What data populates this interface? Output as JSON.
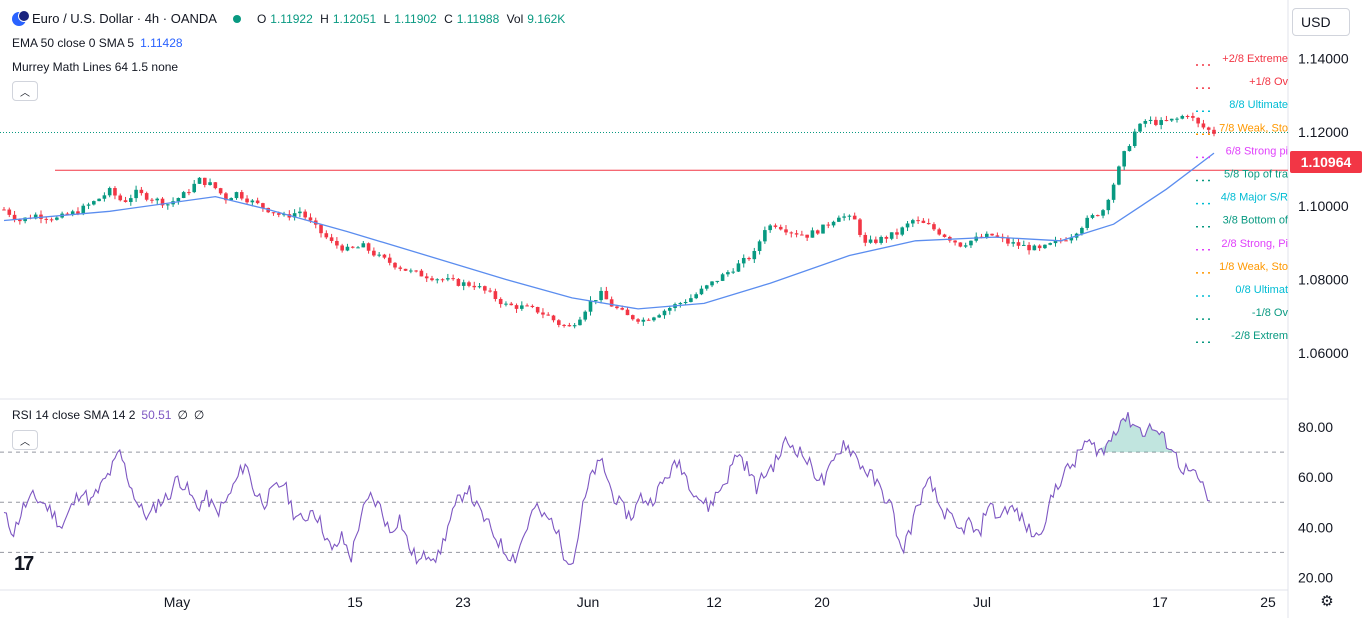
{
  "header": {
    "symbol_title": "Euro / U.S. Dollar · 4h · OANDA",
    "ohlc": {
      "o_label": "O",
      "o": "1.11922",
      "h_label": "H",
      "h": "1.12051",
      "l_label": "L",
      "l": "1.11902",
      "c_label": "C",
      "c": "1.11988",
      "vol_label": "Vol",
      "vol": "9.162K"
    },
    "currency": "USD"
  },
  "indicators": {
    "ema_label": "EMA 50 close 0 SMA 5",
    "ema_value": "1.11428",
    "murrey_label": "Murrey Math Lines 64 1.5 none",
    "rsi_label": "RSI 14 close SMA 14 2",
    "rsi_value": "50.51",
    "rsi_extra1": "∅",
    "rsi_extra2": "∅"
  },
  "price_tag": "1.10964",
  "colors": {
    "up": "#089981",
    "down": "#f23645",
    "ema": "#5b8def",
    "rsi": "#7e57c2",
    "resistance": "#f23645",
    "rsi_fill_top": "#089981"
  },
  "chart_data": [
    {
      "type": "candlestick",
      "title": "",
      "ylim": [
        1.05,
        1.145
      ],
      "y_ticks": [
        "1.14000",
        "1.12000",
        "1.10000",
        "1.08000",
        "1.06000"
      ],
      "x_ticks": [
        "May",
        "15",
        "23",
        "Jun",
        "12",
        "20",
        "Jul",
        "17",
        "25"
      ],
      "horizontal_line": 1.10964,
      "last_close": 1.11988,
      "price_path": [
        [
          0,
          1.099
        ],
        [
          6,
          1.096
        ],
        [
          12,
          1.0975
        ],
        [
          20,
          1.0965
        ],
        [
          28,
          1.0985
        ],
        [
          34,
          1.101
        ],
        [
          40,
          1.104
        ],
        [
          45,
          1.101
        ],
        [
          50,
          1.1035
        ],
        [
          56,
          1.102
        ],
        [
          62,
          1.1005
        ],
        [
          68,
          1.103
        ],
        [
          74,
          1.107
        ],
        [
          79,
          1.1055
        ],
        [
          84,
          1.102
        ],
        [
          88,
          1.1035
        ],
        [
          94,
          1.101
        ],
        [
          100,
          1.099
        ],
        [
          106,
          1.097
        ],
        [
          112,
          1.0985
        ],
        [
          118,
          1.094
        ],
        [
          124,
          1.09
        ],
        [
          130,
          1.088
        ],
        [
          136,
          1.089
        ],
        [
          142,
          1.086
        ],
        [
          148,
          1.084
        ],
        [
          154,
          1.082
        ],
        [
          160,
          1.081
        ],
        [
          166,
          1.08
        ],
        [
          172,
          1.079
        ],
        [
          178,
          1.0785
        ],
        [
          184,
          1.076
        ],
        [
          190,
          1.073
        ],
        [
          196,
          1.0725
        ],
        [
          202,
          1.0715
        ],
        [
          206,
          1.07
        ],
        [
          210,
          1.068
        ],
        [
          214,
          1.067
        ],
        [
          218,
          1.07
        ],
        [
          222,
          1.074
        ],
        [
          226,
          1.076
        ],
        [
          230,
          1.073
        ],
        [
          236,
          1.07
        ],
        [
          242,
          1.069
        ],
        [
          248,
          1.071
        ],
        [
          254,
          1.073
        ],
        [
          260,
          1.075
        ],
        [
          266,
          1.078
        ],
        [
          272,
          1.081
        ],
        [
          278,
          1.084
        ],
        [
          284,
          1.087
        ],
        [
          288,
          1.094
        ],
        [
          292,
          1.095
        ],
        [
          298,
          1.093
        ],
        [
          304,
          1.092
        ],
        [
          310,
          1.094
        ],
        [
          316,
          1.0975
        ],
        [
          322,
          1.096
        ],
        [
          326,
          1.0895
        ],
        [
          332,
          1.091
        ],
        [
          338,
          1.0925
        ],
        [
          344,
          1.096
        ],
        [
          350,
          1.0945
        ],
        [
          356,
          1.092
        ],
        [
          362,
          1.0895
        ],
        [
          368,
          1.091
        ],
        [
          374,
          1.092
        ],
        [
          380,
          1.09
        ],
        [
          386,
          1.089
        ],
        [
          392,
          1.088
        ],
        [
          398,
          1.09
        ],
        [
          404,
          1.092
        ],
        [
          410,
          1.096
        ],
        [
          416,
          1.099
        ],
        [
          420,
          1.106
        ],
        [
          424,
          1.114
        ],
        [
          428,
          1.12
        ],
        [
          432,
          1.123
        ],
        [
          438,
          1.1225
        ],
        [
          444,
          1.1235
        ],
        [
          448,
          1.125
        ],
        [
          452,
          1.122
        ],
        [
          456,
          1.1205
        ],
        [
          458,
          1.1199
        ]
      ],
      "ema_path": [
        [
          0,
          1.096
        ],
        [
          40,
          1.0985
        ],
        [
          80,
          1.1025
        ],
        [
          100,
          1.099
        ],
        [
          130,
          1.093
        ],
        [
          160,
          1.0865
        ],
        [
          190,
          1.08
        ],
        [
          215,
          1.075
        ],
        [
          240,
          1.072
        ],
        [
          265,
          1.0735
        ],
        [
          290,
          1.079
        ],
        [
          320,
          1.0865
        ],
        [
          345,
          1.0905
        ],
        [
          375,
          1.0915
        ],
        [
          400,
          1.0905
        ],
        [
          420,
          1.095
        ],
        [
          440,
          1.1045
        ],
        [
          458,
          1.1143
        ]
      ]
    },
    {
      "type": "line",
      "title": "",
      "ylim": [
        15,
        90
      ],
      "y_ticks": [
        "80.00",
        "60.00",
        "40.00",
        "20.00"
      ],
      "bands": [
        70,
        50,
        30
      ],
      "last_value": 50.51,
      "series": [
        {
          "values": [
            45,
            38,
            48,
            52,
            50,
            46,
            40,
            48,
            55,
            50,
            56,
            62,
            70,
            58,
            48,
            44,
            50,
            52,
            60,
            55,
            48,
            52,
            46,
            50,
            58,
            66,
            54,
            50,
            55,
            58,
            46,
            42,
            48,
            40,
            30,
            36,
            28,
            45,
            52,
            48,
            38,
            44,
            32,
            26,
            30,
            28,
            40,
            50,
            56,
            48,
            42,
            36,
            30,
            28,
            38,
            48,
            44,
            42,
            30,
            26,
            48,
            62,
            66,
            54,
            48,
            44,
            52,
            50,
            56,
            62,
            66,
            58,
            52,
            48,
            54,
            60,
            70,
            64,
            56,
            62,
            66,
            74,
            72,
            68,
            62,
            58,
            66,
            74,
            70,
            64,
            60,
            54,
            48,
            30,
            40,
            52,
            58,
            48,
            44,
            38,
            42,
            36,
            50,
            44,
            48,
            46,
            40,
            36,
            44,
            56,
            62,
            66,
            74,
            72,
            70,
            78,
            84,
            82,
            78,
            80,
            76,
            72,
            64,
            62,
            58,
            50
          ]
        }
      ]
    }
  ]
}
